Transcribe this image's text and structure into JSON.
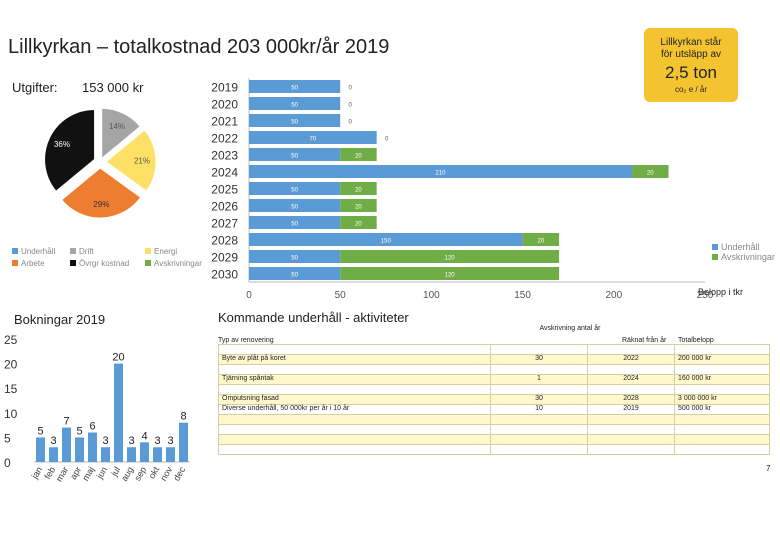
{
  "title": "Lillkyrkan – totalkostnad 203 000kr/år 2019",
  "expenses": {
    "label": "Utgifter:",
    "value": "153 000 kr"
  },
  "co2": {
    "line1": "Lillkyrkan står",
    "line2": "för utsläpp av",
    "amount": "2,5 ton",
    "unit": "co₂ e / år",
    "color": "#f4c430"
  },
  "colors": {
    "underhall": "#5b9bd5",
    "drift": "#a5a5a5",
    "energi": "#ffe066",
    "arbete": "#ed7d31",
    "ovrigt": "#111111",
    "avskrivningar": "#70ad47",
    "bars": "#5b9bd5"
  },
  "chart_data": [
    {
      "type": "pie",
      "legend": [
        "Underhåll",
        "Drift",
        "Energi",
        "Arbete",
        "Övrgr kostnad",
        "Avskrivningar"
      ],
      "slices": [
        {
          "name": "Drift",
          "value": 14,
          "label": "14%"
        },
        {
          "name": "Energi",
          "value": 21,
          "label": "21%"
        },
        {
          "name": "Arbete",
          "value": 29,
          "label": "29%"
        },
        {
          "name": "Övrgr kostnad",
          "value": 36,
          "label": "36%"
        }
      ]
    },
    {
      "type": "bar",
      "orientation": "horizontal",
      "stacked": true,
      "categories": [
        "2019",
        "2020",
        "2021",
        "2022",
        "2023",
        "2024",
        "2025",
        "2026",
        "2027",
        "2028",
        "2029",
        "2030"
      ],
      "series": [
        {
          "name": "Underhåll",
          "values": [
            50,
            50,
            50,
            70,
            50,
            210,
            50,
            50,
            50,
            150,
            50,
            50
          ]
        },
        {
          "name": "Avskrivningar",
          "values": [
            0,
            0,
            0,
            0,
            20,
            20,
            20,
            20,
            20,
            20,
            120,
            120
          ]
        }
      ],
      "xlim": [
        0,
        250
      ],
      "xticks": [
        "0",
        "50",
        "100",
        "150",
        "200",
        "250"
      ],
      "xlabel": "Belopp i tkr",
      "legend": [
        "Underhåll",
        "Avskrivningar"
      ]
    },
    {
      "type": "bar",
      "title": "Bokningar 2019",
      "categories": [
        "jan",
        "feb",
        "mar",
        "apr",
        "maj",
        "jun",
        "jul",
        "aug",
        "sep",
        "okt",
        "nov",
        "dec"
      ],
      "values": [
        5,
        3,
        7,
        5,
        6,
        3,
        20,
        3,
        4,
        3,
        3,
        8
      ],
      "ylim": [
        0,
        25
      ],
      "yticks": [
        "0",
        "5",
        "10",
        "15",
        "20",
        "25"
      ]
    }
  ],
  "kommande": {
    "title": "Kommande underhåll - aktiviteter",
    "headers": {
      "type": "Typ av renovering",
      "avskrivning": "Avskrivning antal år",
      "raknat": "Räknat från år",
      "total": "Totalbelopp"
    },
    "rows": [
      {
        "type": "",
        "avskrivning": "",
        "raknat": "",
        "total": ""
      },
      {
        "type": "Byte av plåt på koret",
        "avskrivning": "30",
        "raknat": "2022",
        "total": "200 000 kr"
      },
      {
        "type": "",
        "avskrivning": "",
        "raknat": "",
        "total": ""
      },
      {
        "type": "Tjärning spåntak",
        "avskrivning": "1",
        "raknat": "2024",
        "total": "160 000 kr"
      },
      {
        "type": "",
        "avskrivning": "",
        "raknat": "",
        "total": ""
      },
      {
        "type": "Omputsning fasad",
        "avskrivning": "30",
        "raknat": "2028",
        "total": "3 000 000 kr"
      },
      {
        "type": "Diverse underhåll, 50 000kr per år i 10 år",
        "avskrivning": "10",
        "raknat": "2019",
        "total": "500 000 kr"
      },
      {
        "type": "",
        "avskrivning": "",
        "raknat": "",
        "total": ""
      },
      {
        "type": "",
        "avskrivning": "",
        "raknat": "",
        "total": ""
      },
      {
        "type": "",
        "avskrivning": "",
        "raknat": "",
        "total": ""
      },
      {
        "type": "",
        "avskrivning": "",
        "raknat": "",
        "total": ""
      }
    ]
  },
  "page_number": "7"
}
